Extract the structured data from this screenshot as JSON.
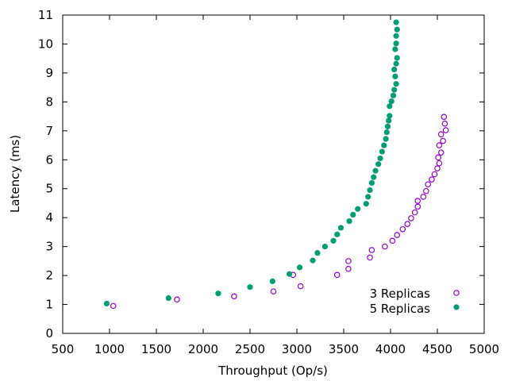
{
  "chart_data": {
    "type": "scatter",
    "xlabel": "Throughput (Op/s)",
    "ylabel": "Latency (ms)",
    "xlim": [
      500,
      5000
    ],
    "ylim": [
      0,
      11
    ],
    "xticks": [
      500,
      1000,
      1500,
      2000,
      2500,
      3000,
      3500,
      4000,
      4500,
      5000
    ],
    "yticks": [
      0,
      1,
      2,
      3,
      4,
      5,
      6,
      7,
      8,
      9,
      10,
      11
    ],
    "grid": false,
    "legend_position": "bottom-right",
    "series": [
      {
        "name": "3 Replicas",
        "marker": "open-circle",
        "color": "#9400d3",
        "points": [
          [
            1040,
            0.95
          ],
          [
            1720,
            1.17
          ],
          [
            2330,
            1.28
          ],
          [
            2750,
            1.45
          ],
          [
            3040,
            1.63
          ],
          [
            2960,
            2.02
          ],
          [
            3430,
            2.02
          ],
          [
            3550,
            2.23
          ],
          [
            3550,
            2.5
          ],
          [
            3780,
            2.62
          ],
          [
            3800,
            2.88
          ],
          [
            3940,
            3.0
          ],
          [
            4020,
            3.2
          ],
          [
            4070,
            3.4
          ],
          [
            4130,
            3.6
          ],
          [
            4180,
            3.78
          ],
          [
            4220,
            3.98
          ],
          [
            4260,
            4.18
          ],
          [
            4290,
            4.38
          ],
          [
            4290,
            4.58
          ],
          [
            4350,
            4.72
          ],
          [
            4380,
            4.92
          ],
          [
            4400,
            5.15
          ],
          [
            4440,
            5.32
          ],
          [
            4470,
            5.5
          ],
          [
            4500,
            5.7
          ],
          [
            4520,
            5.88
          ],
          [
            4510,
            6.08
          ],
          [
            4540,
            6.25
          ],
          [
            4520,
            6.5
          ],
          [
            4560,
            6.65
          ],
          [
            4540,
            6.88
          ],
          [
            4590,
            7.02
          ],
          [
            4580,
            7.25
          ],
          [
            4570,
            7.48
          ]
        ]
      },
      {
        "name": "5 Replicas",
        "marker": "filled-circle",
        "color": "#009e73",
        "points": [
          [
            970,
            1.03
          ],
          [
            1630,
            1.22
          ],
          [
            2160,
            1.38
          ],
          [
            2500,
            1.6
          ],
          [
            2740,
            1.8
          ],
          [
            2920,
            2.05
          ],
          [
            3030,
            2.28
          ],
          [
            3170,
            2.52
          ],
          [
            3220,
            2.78
          ],
          [
            3300,
            3.0
          ],
          [
            3390,
            3.2
          ],
          [
            3430,
            3.42
          ],
          [
            3470,
            3.65
          ],
          [
            3560,
            3.88
          ],
          [
            3600,
            4.1
          ],
          [
            3650,
            4.3
          ],
          [
            3740,
            4.48
          ],
          [
            3760,
            4.72
          ],
          [
            3780,
            4.95
          ],
          [
            3800,
            5.2
          ],
          [
            3820,
            5.4
          ],
          [
            3840,
            5.62
          ],
          [
            3870,
            5.85
          ],
          [
            3890,
            6.05
          ],
          [
            3910,
            6.28
          ],
          [
            3930,
            6.5
          ],
          [
            3950,
            6.72
          ],
          [
            3960,
            6.95
          ],
          [
            3970,
            7.15
          ],
          [
            3980,
            7.35
          ],
          [
            3990,
            7.52
          ],
          [
            3990,
            7.85
          ],
          [
            4010,
            8.02
          ],
          [
            4030,
            8.22
          ],
          [
            4040,
            8.42
          ],
          [
            4060,
            8.62
          ],
          [
            4050,
            8.88
          ],
          [
            4040,
            9.12
          ],
          [
            4060,
            9.32
          ],
          [
            4070,
            9.52
          ],
          [
            4050,
            9.82
          ],
          [
            4060,
            10.02
          ],
          [
            4060,
            10.28
          ],
          [
            4070,
            10.5
          ],
          [
            4060,
            10.75
          ]
        ]
      }
    ]
  }
}
